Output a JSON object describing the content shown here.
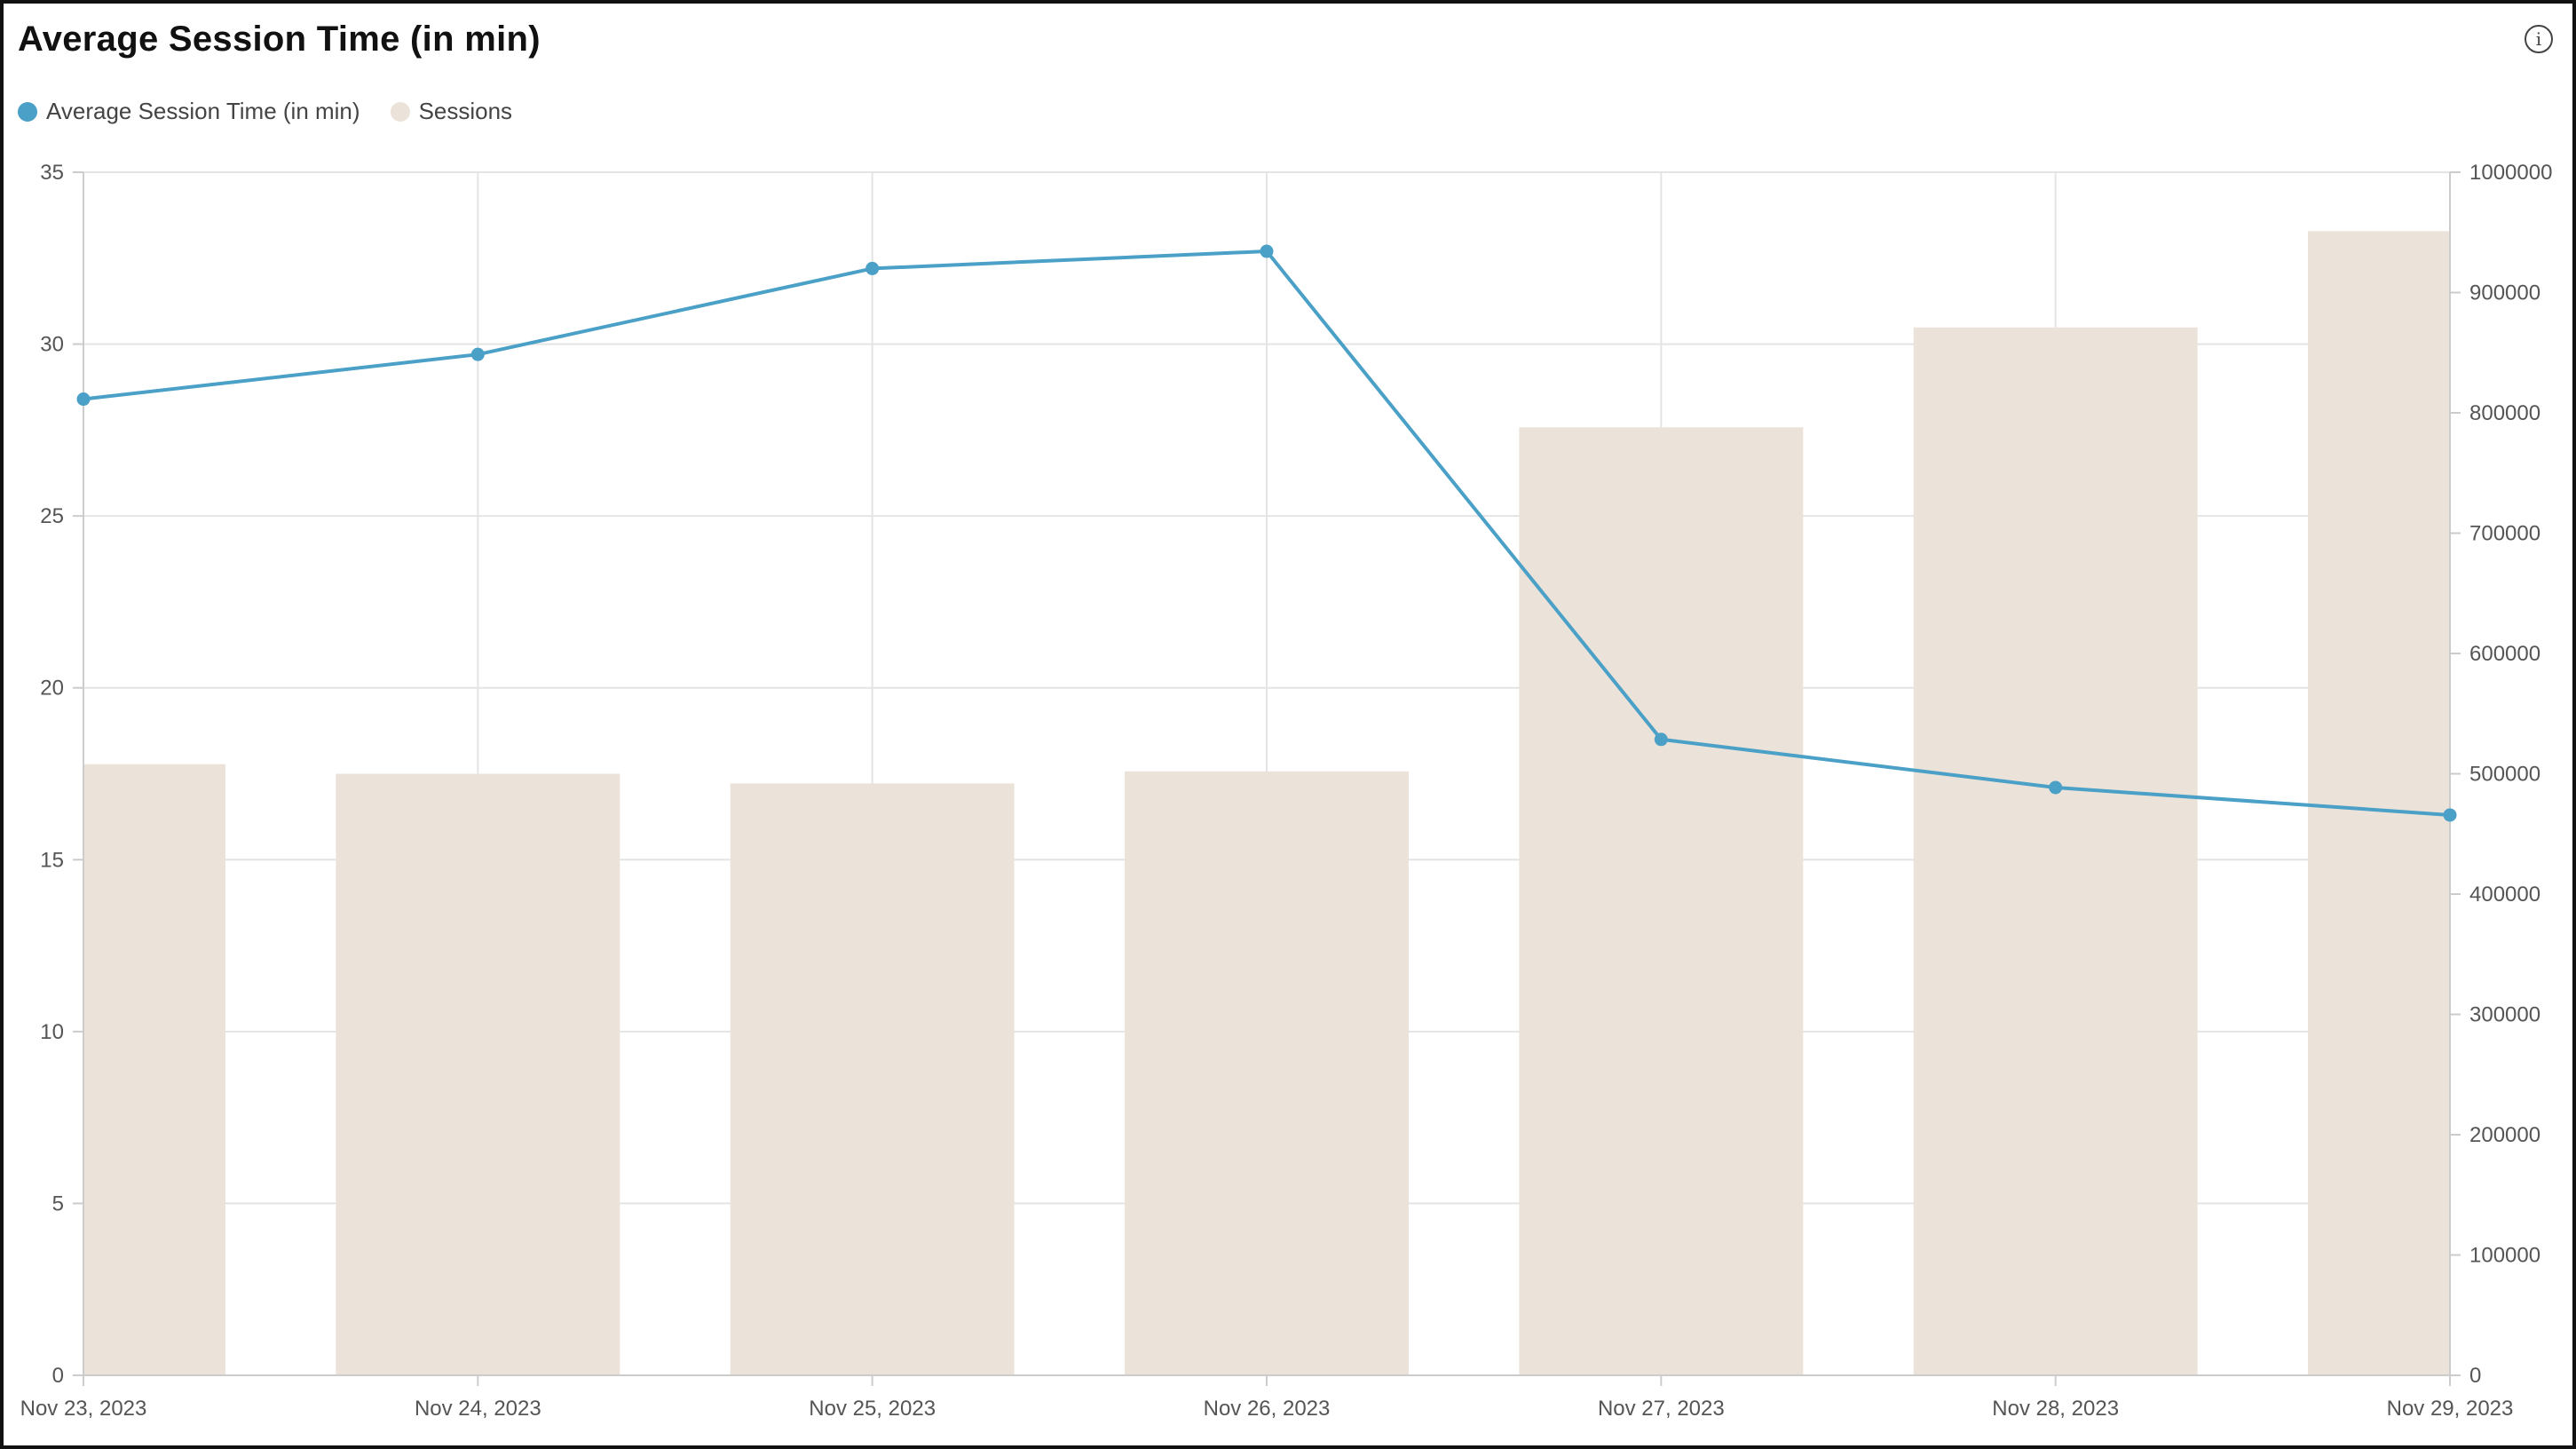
{
  "header": {
    "title": "Average Session Time (in min)",
    "info_icon": "info-icon"
  },
  "legend": [
    {
      "label": "Average Session Time (in min)",
      "color": "#4aa0c7"
    },
    {
      "label": "Sessions",
      "color": "#ebe2d9"
    }
  ],
  "chart_data": {
    "type": "bar",
    "categories": [
      "Nov 23, 2023",
      "Nov 24, 2023",
      "Nov 25, 2023",
      "Nov 26, 2023",
      "Nov 27, 2023",
      "Nov 28, 2023",
      "Nov 29, 2023"
    ],
    "series": [
      {
        "name": "Average Session Time (in min)",
        "type": "line",
        "axis": "left",
        "color": "#4aa0c7",
        "values": [
          28.4,
          29.7,
          32.2,
          32.7,
          18.5,
          17.1,
          16.3
        ]
      },
      {
        "name": "Sessions",
        "type": "bar",
        "axis": "right",
        "color": "#ebe2d9",
        "values": [
          508000,
          500000,
          492000,
          502000,
          788000,
          871000,
          951000
        ]
      }
    ],
    "y_left": {
      "ylim": [
        0,
        35
      ],
      "ticks": [
        "0",
        "5",
        "10",
        "15",
        "20",
        "25",
        "30",
        "35"
      ]
    },
    "y_right": {
      "ylim": [
        0,
        1000000
      ],
      "ticks": [
        "0",
        "100000",
        "200000",
        "300000",
        "400000",
        "500000",
        "600000",
        "700000",
        "800000",
        "900000",
        "1000000"
      ]
    },
    "grid": true
  }
}
